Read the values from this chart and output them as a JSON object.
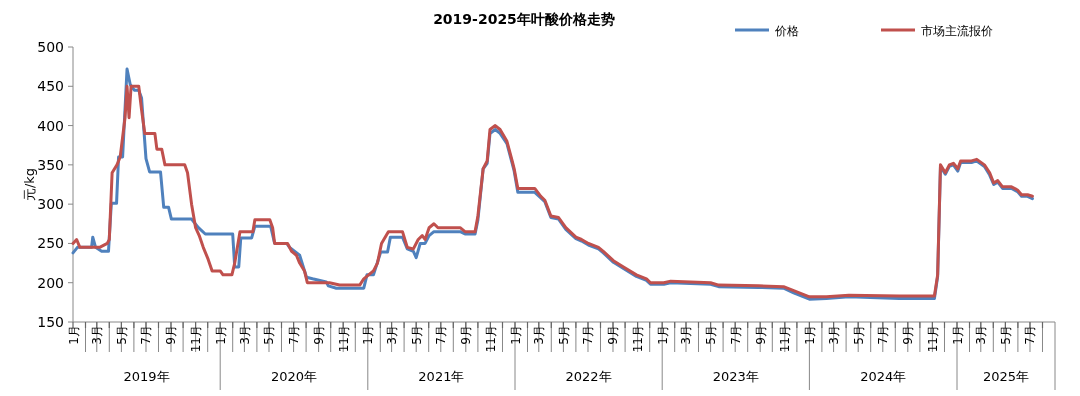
{
  "chart_data": {
    "type": "line",
    "title": "2019-2025年叶酸价格走势",
    "ylabel": "元/kg",
    "ylim": [
      150,
      500
    ],
    "yticks": [
      150,
      200,
      250,
      300,
      350,
      400,
      450,
      500
    ],
    "xlim": [
      "2019-01-01",
      "2025-09-01"
    ],
    "xticks": [
      {
        "value": "2019-01-01",
        "label": "1月"
      },
      {
        "value": "2019-02-01",
        "label": null
      },
      {
        "value": "2019-03-01",
        "label": "3月"
      },
      {
        "value": "2019-04-01",
        "label": null
      },
      {
        "value": "2019-05-01",
        "label": "5月"
      },
      {
        "value": "2019-06-01",
        "label": null
      },
      {
        "value": "2019-07-01",
        "label": "7月"
      },
      {
        "value": "2019-08-01",
        "label": null
      },
      {
        "value": "2019-09-01",
        "label": "9月"
      },
      {
        "value": "2019-10-01",
        "label": null
      },
      {
        "value": "2019-11-01",
        "label": "11月"
      },
      {
        "value": "2019-12-01",
        "label": null
      },
      {
        "value": "2020-01-01",
        "label": "1月"
      },
      {
        "value": "2020-02-01",
        "label": null
      },
      {
        "value": "2020-03-01",
        "label": "3月"
      },
      {
        "value": "2020-04-01",
        "label": null
      },
      {
        "value": "2020-05-01",
        "label": "5月"
      },
      {
        "value": "2020-06-01",
        "label": null
      },
      {
        "value": "2020-07-01",
        "label": "7月"
      },
      {
        "value": "2020-08-01",
        "label": null
      },
      {
        "value": "2020-09-01",
        "label": "9月"
      },
      {
        "value": "2020-10-01",
        "label": null
      },
      {
        "value": "2020-11-01",
        "label": "11月"
      },
      {
        "value": "2020-12-01",
        "label": null
      },
      {
        "value": "2021-01-01",
        "label": "1月"
      },
      {
        "value": "2021-02-01",
        "label": null
      },
      {
        "value": "2021-03-01",
        "label": "3月"
      },
      {
        "value": "2021-04-01",
        "label": null
      },
      {
        "value": "2021-05-01",
        "label": "5月"
      },
      {
        "value": "2021-06-01",
        "label": null
      },
      {
        "value": "2021-07-01",
        "label": "7月"
      },
      {
        "value": "2021-08-01",
        "label": null
      },
      {
        "value": "2021-09-01",
        "label": "9月"
      },
      {
        "value": "2021-10-01",
        "label": null
      },
      {
        "value": "2021-11-01",
        "label": "11月"
      },
      {
        "value": "2021-12-01",
        "label": null
      },
      {
        "value": "2022-01-01",
        "label": "1月"
      },
      {
        "value": "2022-02-01",
        "label": null
      },
      {
        "value": "2022-03-01",
        "label": "3月"
      },
      {
        "value": "2022-04-01",
        "label": null
      },
      {
        "value": "2022-05-01",
        "label": "5月"
      },
      {
        "value": "2022-06-01",
        "label": null
      },
      {
        "value": "2022-07-01",
        "label": "7月"
      },
      {
        "value": "2022-08-01",
        "label": null
      },
      {
        "value": "2022-09-01",
        "label": "9月"
      },
      {
        "value": "2022-10-01",
        "label": null
      },
      {
        "value": "2022-11-01",
        "label": "11月"
      },
      {
        "value": "2022-12-01",
        "label": null
      },
      {
        "value": "2023-01-01",
        "label": "1月"
      },
      {
        "value": "2023-02-01",
        "label": null
      },
      {
        "value": "2023-03-01",
        "label": "3月"
      },
      {
        "value": "2023-04-01",
        "label": null
      },
      {
        "value": "2023-05-01",
        "label": "5月"
      },
      {
        "value": "2023-06-01",
        "label": null
      },
      {
        "value": "2023-07-01",
        "label": "7月"
      },
      {
        "value": "2023-08-01",
        "label": null
      },
      {
        "value": "2023-09-01",
        "label": "9月"
      },
      {
        "value": "2023-10-01",
        "label": null
      },
      {
        "value": "2023-11-01",
        "label": "11月"
      },
      {
        "value": "2023-12-01",
        "label": null
      },
      {
        "value": "2024-01-01",
        "label": "1月"
      },
      {
        "value": "2024-02-01",
        "label": null
      },
      {
        "value": "2024-03-01",
        "label": "3月"
      },
      {
        "value": "2024-04-01",
        "label": null
      },
      {
        "value": "2024-05-01",
        "label": "5月"
      },
      {
        "value": "2024-06-01",
        "label": null
      },
      {
        "value": "2024-07-01",
        "label": "7月"
      },
      {
        "value": "2024-08-01",
        "label": null
      },
      {
        "value": "2024-09-01",
        "label": "9月"
      },
      {
        "value": "2024-10-01",
        "label": null
      },
      {
        "value": "2024-11-01",
        "label": "11月"
      },
      {
        "value": "2024-12-01",
        "label": null
      },
      {
        "value": "2025-01-01",
        "label": "1月"
      },
      {
        "value": "2025-02-01",
        "label": null
      },
      {
        "value": "2025-03-01",
        "label": "3月"
      },
      {
        "value": "2025-04-01",
        "label": null
      },
      {
        "value": "2025-05-01",
        "label": "5月"
      },
      {
        "value": "2025-06-01",
        "label": null
      },
      {
        "value": "2025-07-01",
        "label": "7月"
      },
      {
        "value": "2025-08-01",
        "label": null
      }
    ],
    "annotations": [
      "2019年",
      "2020年",
      "2021年",
      "2022年",
      "2023年",
      "2024年",
      "2025年"
    ],
    "legend": "top right",
    "marker": "none",
    "line_style": "solid",
    "series": [
      {
        "name": "价格",
        "color": "#4f81bd",
        "x": [
          "2019-01-01",
          "2019-01-12",
          "2019-02-16",
          "2019-02-19",
          "2019-02-26",
          "2019-03-13",
          "2019-03-30",
          "2019-04-06",
          "2019-04-19",
          "2019-04-24",
          "2019-05-04",
          "2019-05-15",
          "2019-05-23",
          "2019-06-02",
          "2019-06-13",
          "2019-06-20",
          "2019-07-01",
          "2019-07-10",
          "2019-08-06",
          "2019-08-14",
          "2019-08-26",
          "2019-09-02",
          "2019-10-22",
          "2019-11-08",
          "2019-11-25",
          "2020-02-01",
          "2020-02-06",
          "2020-02-16",
          "2020-02-21",
          "2020-03-19",
          "2020-03-27",
          "2020-05-05",
          "2020-05-15",
          "2020-06-14",
          "2020-06-21",
          "2020-07-16",
          "2020-08-02",
          "2020-08-17",
          "2020-09-20",
          "2020-09-25",
          "2020-10-15",
          "2020-12-22",
          "2020-12-30",
          "2021-01-15",
          "2021-02-02",
          "2021-02-19",
          "2021-02-26",
          "2021-03-28",
          "2021-04-09",
          "2021-04-24",
          "2021-05-01",
          "2021-05-11",
          "2021-05-23",
          "2021-06-02",
          "2021-06-14",
          "2021-08-18",
          "2021-08-30",
          "2021-09-24",
          "2021-10-01",
          "2021-10-14",
          "2021-10-24",
          "2021-10-31",
          "2021-11-13",
          "2021-11-25",
          "2021-12-12",
          "2021-12-25",
          "2021-12-30",
          "2022-01-08",
          "2022-02-19",
          "2022-03-06",
          "2022-03-16",
          "2022-03-31",
          "2022-04-19",
          "2022-05-07",
          "2022-06-01",
          "2022-06-15",
          "2022-07-02",
          "2022-07-27",
          "2022-08-08",
          "2022-09-02",
          "2022-09-27",
          "2022-10-29",
          "2022-11-23",
          "2022-12-03",
          "2023-01-05",
          "2023-01-22",
          "2023-05-01",
          "2023-05-21",
          "2023-08-28",
          "2023-10-29",
          "2023-11-23",
          "2024-01-01",
          "2024-02-12",
          "2024-04-08",
          "2024-08-11",
          "2024-11-06",
          "2024-11-14",
          "2024-11-21",
          "2024-12-03",
          "2024-12-13",
          "2024-12-23",
          "2025-01-03",
          "2025-01-10",
          "2025-02-06",
          "2025-02-19",
          "2025-03-10",
          "2025-03-23",
          "2025-04-02",
          "2025-04-12",
          "2025-04-24",
          "2025-05-16",
          "2025-05-31",
          "2025-06-10",
          "2025-06-25",
          "2025-07-07"
        ],
        "values": [
          238,
          245,
          245,
          258,
          245,
          240,
          240,
          301,
          301,
          360,
          360,
          472,
          452,
          445,
          445,
          435,
          358,
          341,
          341,
          296,
          296,
          281,
          281,
          270,
          262,
          262,
          220,
          220,
          257,
          257,
          272,
          272,
          250,
          250,
          245,
          235,
          207,
          205,
          201,
          196,
          193,
          193,
          210,
          210,
          239,
          239,
          258,
          258,
          243,
          240,
          232,
          250,
          250,
          260,
          265,
          265,
          262,
          262,
          280,
          345,
          352,
          390,
          395,
          390,
          377,
          352,
          342,
          315,
          315,
          308,
          303,
          283,
          281,
          268,
          256,
          253,
          248,
          243,
          238,
          226,
          218,
          208,
          203,
          198,
          198,
          200,
          198,
          195,
          194,
          193,
          187,
          179,
          180,
          182,
          180,
          180,
          208,
          348,
          338,
          348,
          350,
          342,
          353,
          353,
          355,
          348,
          337,
          325,
          328,
          320,
          320,
          316,
          310,
          310,
          307
        ]
      },
      {
        "name": "市场主流报价",
        "color": "#c0504d",
        "x": [
          "2019-01-01",
          "2019-01-10",
          "2019-01-18",
          "2019-03-08",
          "2019-03-27",
          "2019-04-01",
          "2019-04-08",
          "2019-04-20",
          "2019-04-28",
          "2019-05-10",
          "2019-05-15",
          "2019-05-20",
          "2019-05-25",
          "2019-06-13",
          "2019-06-20",
          "2019-06-28",
          "2019-07-23",
          "2019-07-28",
          "2019-08-09",
          "2019-08-17",
          "2019-10-05",
          "2019-10-12",
          "2019-10-22",
          "2019-11-01",
          "2019-11-10",
          "2019-11-20",
          "2019-12-02",
          "2019-12-12",
          "2020-01-01",
          "2020-01-08",
          "2020-01-30",
          "2020-02-06",
          "2020-02-19",
          "2020-03-22",
          "2020-03-27",
          "2020-05-03",
          "2020-05-10",
          "2020-05-15",
          "2020-06-16",
          "2020-06-26",
          "2020-07-08",
          "2020-07-16",
          "2020-07-28",
          "2020-08-04",
          "2020-09-28",
          "2020-10-23",
          "2020-12-12",
          "2020-12-22",
          "2021-01-03",
          "2021-01-15",
          "2021-01-25",
          "2021-02-04",
          "2021-02-21",
          "2021-03-28",
          "2021-04-09",
          "2021-04-24",
          "2021-05-06",
          "2021-05-16",
          "2021-05-23",
          "2021-06-02",
          "2021-06-14",
          "2021-06-24",
          "2021-08-18",
          "2021-08-30",
          "2021-09-24",
          "2021-10-01",
          "2021-10-14",
          "2021-10-24",
          "2021-10-31",
          "2021-11-13",
          "2021-11-25",
          "2021-12-12",
          "2021-12-25",
          "2021-12-30",
          "2022-01-08",
          "2022-02-19",
          "2022-03-06",
          "2022-03-16",
          "2022-03-31",
          "2022-04-19",
          "2022-05-07",
          "2022-06-01",
          "2022-06-15",
          "2022-07-02",
          "2022-07-27",
          "2022-08-08",
          "2022-09-02",
          "2022-09-27",
          "2022-10-29",
          "2022-11-23",
          "2022-12-03",
          "2023-01-05",
          "2023-01-22",
          "2023-05-01",
          "2023-05-21",
          "2023-08-28",
          "2023-10-29",
          "2023-11-23",
          "2024-01-01",
          "2024-02-12",
          "2024-04-08",
          "2024-08-11",
          "2024-11-06",
          "2024-11-14",
          "2024-11-21",
          "2024-12-03",
          "2024-12-13",
          "2024-12-23",
          "2025-01-03",
          "2025-01-10",
          "2025-02-06",
          "2025-02-19",
          "2025-03-10",
          "2025-03-23",
          "2025-04-02",
          "2025-04-12",
          "2025-04-24",
          "2025-05-16",
          "2025-05-31",
          "2025-06-10",
          "2025-06-25",
          "2025-07-07"
        ],
        "values": [
          250,
          255,
          245,
          245,
          250,
          255,
          340,
          350,
          360,
          410,
          450,
          410,
          450,
          450,
          420,
          390,
          390,
          370,
          370,
          350,
          350,
          340,
          300,
          270,
          260,
          245,
          230,
          215,
          215,
          210,
          210,
          225,
          265,
          265,
          280,
          280,
          270,
          250,
          250,
          240,
          235,
          225,
          215,
          200,
          200,
          197,
          197,
          205,
          210,
          215,
          225,
          250,
          265,
          265,
          245,
          243,
          255,
          260,
          255,
          270,
          275,
          270,
          270,
          265,
          265,
          285,
          345,
          355,
          395,
          400,
          395,
          380,
          355,
          345,
          320,
          320,
          310,
          305,
          285,
          283,
          270,
          258,
          255,
          250,
          245,
          240,
          228,
          220,
          210,
          205,
          200,
          200,
          202,
          200,
          197,
          196,
          195,
          190,
          182,
          182,
          184,
          183,
          183,
          210,
          350,
          340,
          350,
          352,
          345,
          355,
          355,
          357,
          350,
          340,
          327,
          330,
          322,
          322,
          318,
          312,
          312,
          310
        ]
      }
    ]
  }
}
